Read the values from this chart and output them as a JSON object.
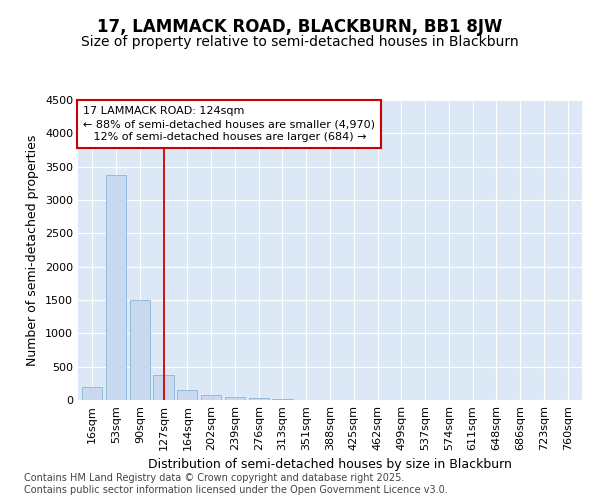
{
  "title1": "17, LAMMACK ROAD, BLACKBURN, BB1 8JW",
  "title2": "Size of property relative to semi-detached houses in Blackburn",
  "xlabel": "Distribution of semi-detached houses by size in Blackburn",
  "ylabel": "Number of semi-detached properties",
  "categories": [
    "16sqm",
    "53sqm",
    "90sqm",
    "127sqm",
    "164sqm",
    "202sqm",
    "239sqm",
    "276sqm",
    "313sqm",
    "351sqm",
    "388sqm",
    "425sqm",
    "462sqm",
    "499sqm",
    "537sqm",
    "574sqm",
    "611sqm",
    "648sqm",
    "686sqm",
    "723sqm",
    "760sqm"
  ],
  "values": [
    200,
    3380,
    1500,
    380,
    150,
    75,
    50,
    30,
    15,
    7,
    4,
    3,
    0,
    0,
    0,
    0,
    0,
    0,
    0,
    0,
    0
  ],
  "bar_color": "#c8d8ee",
  "bar_edge_color": "#8ab4d8",
  "vline_x_index": 3,
  "vline_color": "#cc0000",
  "annotation_line1": "17 LAMMACK ROAD: 124sqm",
  "annotation_line2": "← 88% of semi-detached houses are smaller (4,970)",
  "annotation_line3": "   12% of semi-detached houses are larger (684) →",
  "annotation_box_color": "#cc0000",
  "ylim": [
    0,
    4500
  ],
  "yticks": [
    0,
    500,
    1000,
    1500,
    2000,
    2500,
    3000,
    3500,
    4000,
    4500
  ],
  "plot_bg_color": "#dce8f5",
  "footer": "Contains HM Land Registry data © Crown copyright and database right 2025.\nContains public sector information licensed under the Open Government Licence v3.0.",
  "title1_fontsize": 12,
  "title2_fontsize": 10,
  "axis_label_fontsize": 9,
  "tick_fontsize": 8,
  "annotation_fontsize": 8,
  "footer_fontsize": 7
}
